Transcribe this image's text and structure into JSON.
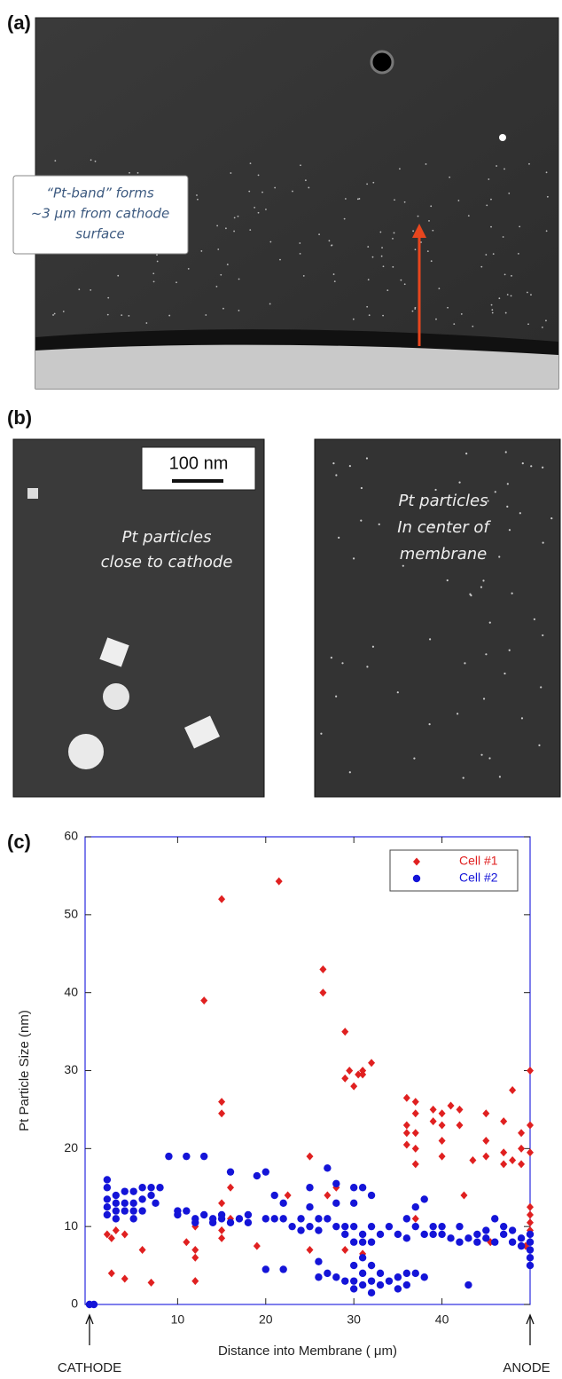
{
  "panel_a": {
    "label": "(a)",
    "annotation": [
      "“Pt-band” forms",
      "~3 μm from cathode",
      "surface"
    ]
  },
  "panel_b": {
    "label": "(b)",
    "scale_bar": "100 nm",
    "left_text": [
      "Pt particles",
      "close to cathode"
    ],
    "right_text": [
      "Pt particles",
      "In center of",
      "membrane"
    ]
  },
  "panel_c": {
    "label": "(c)"
  },
  "chart_data": {
    "type": "scatter",
    "xlabel": "Distance into Membrane ( μm)",
    "ylabel": "Pt Particle Size (nm)",
    "xlim": [
      -0.5,
      50
    ],
    "ylim": [
      0,
      60
    ],
    "xticks": [
      10,
      20,
      30,
      40
    ],
    "yticks": [
      0,
      10,
      20,
      30,
      40,
      50,
      60
    ],
    "legend": "upper right",
    "annotations": [
      {
        "text": "CATHODE",
        "x": 0
      },
      {
        "text": "ANODE",
        "x": 50
      }
    ],
    "series": [
      {
        "name": "Cell #1",
        "color": "#e02020",
        "marker": "diamond",
        "x": [
          0,
          2,
          2.5,
          3,
          4,
          2.5,
          4,
          6,
          7,
          11,
          12,
          12,
          12,
          12,
          13,
          15,
          15,
          15,
          15,
          15,
          15,
          16,
          16,
          19,
          21.5,
          22.5,
          25,
          25,
          26.5,
          26.5,
          27,
          28,
          29,
          29,
          29.5,
          30,
          30.5,
          31,
          31,
          32,
          29,
          31,
          32,
          36,
          36,
          36,
          36,
          37,
          37,
          37,
          37,
          37,
          37,
          39,
          39,
          40,
          40,
          40,
          40,
          41,
          42,
          42,
          42.5,
          43.5,
          45,
          45,
          45,
          45.5,
          47,
          47,
          47,
          48,
          48,
          49,
          49,
          49,
          50,
          50,
          50,
          49.5,
          50,
          50,
          50,
          50
        ],
        "values": [
          0,
          9,
          8.5,
          9.5,
          9,
          4,
          3.3,
          7,
          2.8,
          8,
          7,
          6,
          3,
          10,
          39,
          52,
          26,
          24.5,
          13,
          9.5,
          8.5,
          15,
          11,
          7.5,
          54.3,
          14,
          19,
          7,
          43,
          40,
          14,
          15,
          35,
          29,
          30,
          28,
          29.5,
          29.5,
          30,
          31,
          7,
          6.5,
          5,
          26.5,
          23,
          22,
          20.5,
          26,
          24.5,
          22,
          20,
          18,
          11,
          25,
          23.5,
          24.5,
          23,
          21,
          19,
          25.5,
          23,
          25,
          14,
          18.5,
          24.5,
          21,
          19,
          8,
          23.5,
          19.5,
          18,
          27.5,
          18.5,
          22,
          20,
          18,
          30,
          23,
          19.5,
          7.5,
          12.5,
          11.5,
          9.5,
          10.5
        ]
      },
      {
        "name": "Cell #2",
        "color": "#1414d8",
        "marker": "circle",
        "x": [
          0,
          0.5,
          2,
          2,
          2,
          2,
          2,
          3,
          3,
          3,
          3,
          4,
          4,
          4,
          5,
          5,
          5,
          5,
          6,
          6,
          6,
          7,
          7,
          7.5,
          8,
          9,
          10,
          10,
          11,
          11,
          12,
          12,
          13,
          13,
          14,
          14,
          15,
          15,
          16,
          16,
          17,
          18,
          18,
          19,
          20,
          20,
          21,
          21,
          22,
          22,
          22,
          23,
          20,
          24,
          24,
          25,
          25,
          25,
          26,
          26,
          26,
          26,
          27,
          27,
          27,
          28,
          28,
          28,
          28,
          29,
          29,
          29,
          30,
          30,
          30,
          30,
          30,
          30,
          30,
          31,
          31,
          31,
          31,
          31,
          31,
          32,
          32,
          32,
          32,
          32,
          32,
          33,
          33,
          33,
          34,
          34,
          35,
          35,
          35,
          36,
          36,
          36,
          36,
          37,
          37,
          37,
          38,
          38,
          38,
          39,
          39,
          40,
          40,
          41,
          42,
          42,
          43,
          43,
          44,
          44,
          45,
          45,
          46,
          46,
          47,
          47,
          48,
          48,
          49,
          49,
          50,
          50,
          50,
          50,
          50
        ],
        "values": [
          0,
          0,
          16,
          15,
          13.5,
          12.5,
          11.5,
          14,
          13,
          12,
          11,
          14.5,
          13,
          12,
          14.5,
          13,
          12,
          11,
          15,
          13.5,
          12,
          15,
          14,
          13,
          15,
          19,
          12,
          11.5,
          19,
          12,
          11,
          10.5,
          19,
          11.5,
          11,
          10.5,
          11.5,
          11,
          17,
          10.5,
          11,
          11.5,
          10.5,
          16.5,
          17,
          11,
          11,
          14,
          13,
          11,
          4.5,
          10,
          4.5,
          11,
          9.5,
          12.5,
          10,
          15,
          11,
          9.5,
          5.5,
          3.5,
          17.5,
          11,
          4,
          15.5,
          10,
          3.5,
          13,
          10,
          9,
          3,
          15,
          13,
          10,
          8,
          5,
          3,
          2,
          15,
          9,
          8,
          6,
          4,
          2.5,
          14,
          10,
          8,
          5,
          3,
          1.5,
          9,
          4,
          2.5,
          10,
          3,
          9,
          3.5,
          2,
          11,
          8.5,
          4,
          2.5,
          12.5,
          10,
          4,
          13.5,
          9,
          3.5,
          10,
          9,
          9,
          10,
          8.5,
          10,
          8,
          8.5,
          2.5,
          9,
          8,
          9.5,
          8.5,
          11,
          8,
          10,
          9,
          9.5,
          8,
          8.5,
          7.5,
          9,
          7,
          6,
          5,
          8
        ]
      }
    ]
  }
}
